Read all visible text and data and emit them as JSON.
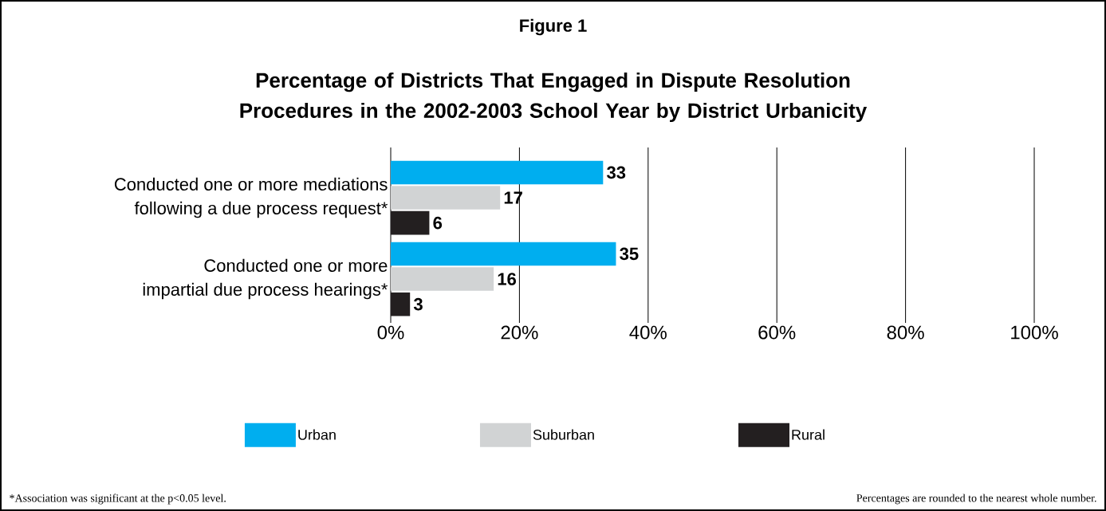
{
  "chart_data": {
    "type": "bar",
    "orientation": "horizontal",
    "title": "Figure 1",
    "subtitle": "Percentage of Districts That Engaged in Dispute Resolution Procedures in the 2002-2003 School Year by District Urbanicity",
    "categories": [
      "Conducted one or more mediations following a due process request*",
      "Conducted one or more impartial due process hearings*"
    ],
    "series": [
      {
        "name": "Urban",
        "color": "#00aeef",
        "values": [
          33,
          35
        ]
      },
      {
        "name": "Suburban",
        "color": "#d1d3d4",
        "values": [
          17,
          16
        ]
      },
      {
        "name": "Rural",
        "color": "#231f20",
        "values": [
          6,
          3
        ]
      }
    ],
    "xlim": [
      0,
      100
    ],
    "xticks": [
      {
        "value": 0,
        "label": "0%"
      },
      {
        "value": 20,
        "label": "20%"
      },
      {
        "value": 40,
        "label": "40%"
      },
      {
        "value": 60,
        "label": "60%"
      },
      {
        "value": 80,
        "label": "80%"
      },
      {
        "value": 100,
        "label": "100%"
      }
    ],
    "grid": "x",
    "legend": "bottom",
    "data_labels": true,
    "annotations": [
      "*Association was significant at the p<0.05 level.",
      "Percentages are rounded to the nearest whole number."
    ]
  }
}
